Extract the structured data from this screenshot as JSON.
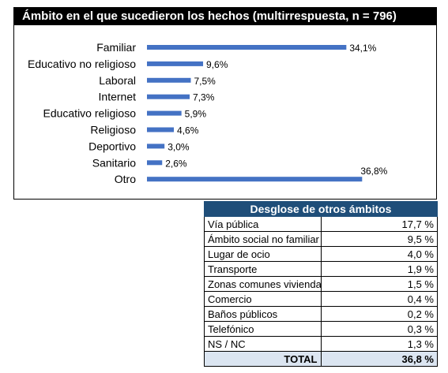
{
  "chart_data": {
    "type": "bar",
    "orientation": "horizontal",
    "title": "Ámbito en el que sucedieron los hechos (multirrespuesta, n = 796)",
    "categories": [
      "Familiar",
      "Educativo no religioso",
      "Laboral",
      "Internet",
      "Educativo religioso",
      "Religioso",
      "Deportivo",
      "Sanitario",
      "Otro"
    ],
    "values": [
      34.1,
      9.6,
      7.5,
      7.3,
      5.9,
      4.6,
      3.0,
      2.6,
      36.8
    ],
    "value_labels": [
      "34,1%",
      "9,6%",
      "7,5%",
      "7,3%",
      "5,9%",
      "4,6%",
      "3,0%",
      "2,6%",
      "36,8%"
    ],
    "bar_color": "#4472c4",
    "grid": false
  },
  "breakdown": {
    "title": "Desglose de otros ámbitos",
    "rows": [
      {
        "label": "Vía pública",
        "value": "17,7 %"
      },
      {
        "label": "Ámbito social no familiar",
        "value": "9,5 %"
      },
      {
        "label": "Lugar de ocio",
        "value": "4,0 %"
      },
      {
        "label": "Transporte",
        "value": "1,9 %"
      },
      {
        "label": "Zonas comunes vivienda",
        "value": "1,5 %"
      },
      {
        "label": "Comercio",
        "value": "0,4 %"
      },
      {
        "label": "Baños públicos",
        "value": "0,2 %"
      },
      {
        "label": "Telefónico",
        "value": "0,3 %"
      },
      {
        "label": "NS / NC",
        "value": "1,3 %"
      }
    ],
    "total_label": "TOTAL",
    "total_value": "36,8 %"
  }
}
